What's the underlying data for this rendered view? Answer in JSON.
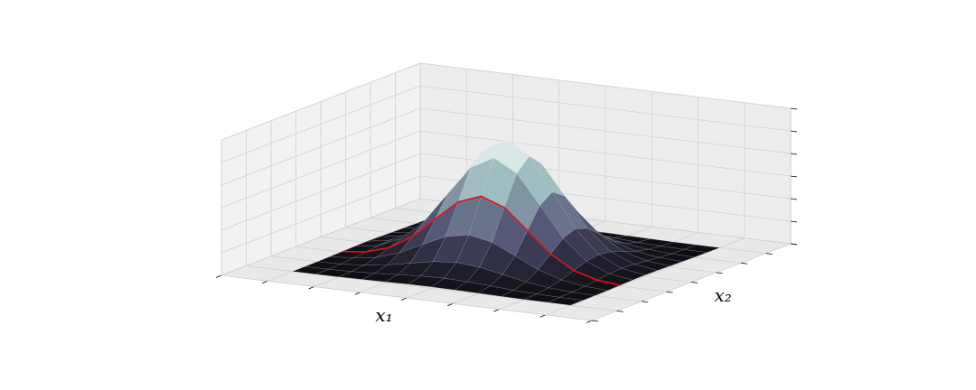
{
  "chart_data": {
    "type": "surface",
    "xlabel": "x₁",
    "ylabel": "x₂",
    "xlim": [
      -4,
      4
    ],
    "xticks": [
      -4,
      -3,
      -2,
      -1,
      0,
      1,
      2,
      3,
      4
    ],
    "ylim": [
      -4,
      4
    ],
    "yticks": [
      -4,
      -3,
      -2,
      -1,
      0,
      1,
      2,
      3,
      4
    ],
    "zlim": [
      0,
      0.18
    ],
    "zticks": [
      0,
      0.03,
      0.06,
      0.09,
      0.12,
      0.15,
      0.18
    ],
    "grid": true,
    "colormap": "bone",
    "x": [
      -3,
      -2.5,
      -2,
      -1.5,
      -1,
      -0.5,
      0,
      0.5,
      1,
      1.5,
      2,
      2.5,
      3
    ],
    "y": [
      -3,
      -2.5,
      -2,
      -1.5,
      -1,
      -0.5,
      0,
      0.5,
      1,
      1.5,
      2,
      2.5,
      3
    ],
    "z": [
      [
        0,
        0.0001,
        0.0002,
        0.0006,
        0.0011,
        0.0016,
        0.0018,
        0.0016,
        0.0011,
        0.0006,
        0.0002,
        0.0001,
        0
      ],
      [
        0.0001,
        0.0003,
        0.001,
        0.0023,
        0.0043,
        0.0062,
        0.007,
        0.0062,
        0.0043,
        0.0023,
        0.001,
        0.0003,
        0.0001
      ],
      [
        0.0002,
        0.0009,
        0.0029,
        0.007,
        0.0131,
        0.0191,
        0.0217,
        0.0191,
        0.0131,
        0.007,
        0.0029,
        0.0009,
        0.0002
      ],
      [
        0.0006,
        0.0023,
        0.007,
        0.0169,
        0.0315,
        0.0459,
        0.052,
        0.0459,
        0.0315,
        0.0169,
        0.007,
        0.0023,
        0.0006
      ],
      [
        0.0011,
        0.0042,
        0.0132,
        0.0315,
        0.0588,
        0.0856,
        0.097,
        0.0856,
        0.0588,
        0.0315,
        0.0132,
        0.0042,
        0.0011
      ],
      [
        0.0016,
        0.0062,
        0.0191,
        0.0459,
        0.0856,
        0.1246,
        0.1412,
        0.1246,
        0.0856,
        0.0459,
        0.0191,
        0.0062,
        0.0016
      ],
      [
        0.0018,
        0.007,
        0.0217,
        0.052,
        0.097,
        0.1412,
        0.16,
        0.1412,
        0.097,
        0.052,
        0.0217,
        0.007,
        0.0018
      ],
      [
        0.0016,
        0.0062,
        0.0191,
        0.0459,
        0.0856,
        0.1246,
        0.1412,
        0.1246,
        0.0856,
        0.0459,
        0.0191,
        0.0062,
        0.0016
      ],
      [
        0.0011,
        0.0042,
        0.0132,
        0.0315,
        0.0588,
        0.0856,
        0.097,
        0.0856,
        0.0588,
        0.0315,
        0.0132,
        0.0042,
        0.0011
      ],
      [
        0.0006,
        0.0023,
        0.007,
        0.0169,
        0.0315,
        0.0459,
        0.052,
        0.0459,
        0.0315,
        0.0169,
        0.007,
        0.0023,
        0.0006
      ],
      [
        0.0002,
        0.0009,
        0.0029,
        0.007,
        0.0131,
        0.0191,
        0.0217,
        0.0191,
        0.0131,
        0.007,
        0.0029,
        0.0009,
        0.0002
      ],
      [
        0.0001,
        0.0003,
        0.001,
        0.0023,
        0.0043,
        0.0062,
        0.007,
        0.0062,
        0.0043,
        0.0023,
        0.001,
        0.0003,
        0.0001
      ],
      [
        0,
        0.0001,
        0.0002,
        0.0006,
        0.0011,
        0.0016,
        0.0018,
        0.0016,
        0.0011,
        0.0006,
        0.0002,
        0.0001,
        0
      ]
    ],
    "curve": {
      "y": -1,
      "color": "#e8101a",
      "values": [
        0.0011,
        0.0042,
        0.0132,
        0.0315,
        0.0588,
        0.0856,
        0.097,
        0.0856,
        0.0588,
        0.0315,
        0.0132,
        0.0042,
        0.0011
      ]
    }
  }
}
